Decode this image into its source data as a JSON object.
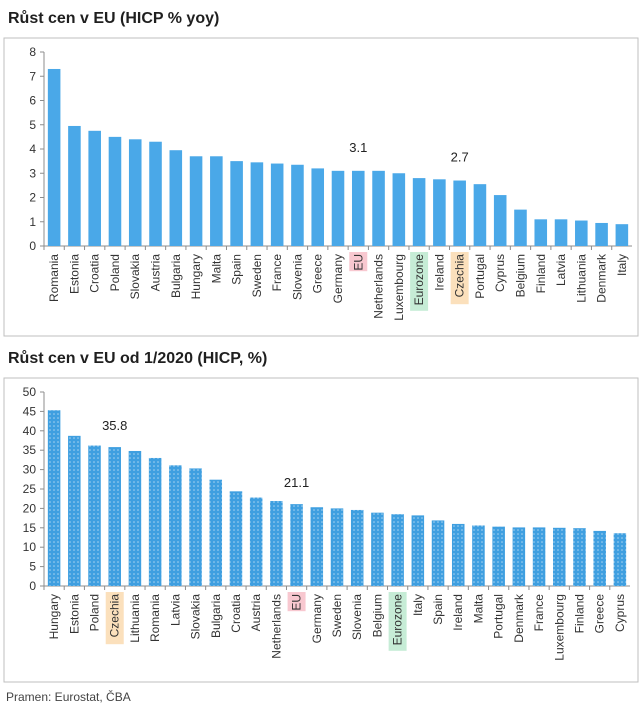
{
  "chart_data": [
    {
      "type": "bar",
      "title": "Růst cen v EU (HICP % yoy)",
      "ylim": [
        0,
        8
      ],
      "yticks": [
        0,
        1,
        2,
        3,
        4,
        5,
        6,
        7,
        8
      ],
      "grid": false,
      "bar_color": "#4aa8e8",
      "categories": [
        "Romania",
        "Estonia",
        "Croatia",
        "Poland",
        "Slovakia",
        "Austria",
        "Bulgaria",
        "Hungary",
        "Malta",
        "Spain",
        "Sweden",
        "France",
        "Slovenia",
        "Greece",
        "Germany",
        "EU",
        "Netherlands",
        "Luxembourg",
        "Eurozone",
        "Ireland",
        "Czechia",
        "Portugal",
        "Cyprus",
        "Belgium",
        "Finland",
        "Latvia",
        "Lithuania",
        "Denmark",
        "Italy"
      ],
      "values": [
        7.3,
        4.95,
        4.75,
        4.5,
        4.4,
        4.3,
        3.95,
        3.7,
        3.7,
        3.5,
        3.45,
        3.4,
        3.35,
        3.2,
        3.1,
        3.1,
        3.1,
        3.0,
        2.8,
        2.75,
        2.7,
        2.55,
        2.1,
        1.5,
        1.1,
        1.1,
        1.05,
        0.95,
        0.9
      ],
      "data_labels": [
        {
          "category": "EU",
          "text": "3.1"
        },
        {
          "category": "Czechia",
          "text": "2.7"
        }
      ],
      "highlights": [
        {
          "category": "EU",
          "color": "#f8c8d0"
        },
        {
          "category": "Eurozone",
          "color": "#c6ecd6"
        },
        {
          "category": "Czechia",
          "color": "#fbe0bc"
        }
      ]
    },
    {
      "type": "bar",
      "title": "Růst cen v EU od 1/2020 (HICP, %)",
      "ylim": [
        0,
        50
      ],
      "yticks": [
        0,
        5,
        10,
        15,
        20,
        25,
        30,
        35,
        40,
        45,
        50
      ],
      "grid": false,
      "bar_color": "#3f9fe0",
      "bar_pattern": "dotted",
      "categories": [
        "Hungary",
        "Estonia",
        "Poland",
        "Czechia",
        "Lithuania",
        "Romania",
        "Latvia",
        "Slovakia",
        "Bulgaria",
        "Croatia",
        "Austria",
        "Netherlands",
        "EU",
        "Germany",
        "Sweden",
        "Slovenia",
        "Belgium",
        "Eurozone",
        "Italy",
        "Spain",
        "Ireland",
        "Malta",
        "Portugal",
        "Denmark",
        "France",
        "Luxembourg",
        "Finland",
        "Greece",
        "Cyprus"
      ],
      "values": [
        45.3,
        38.7,
        36.2,
        35.8,
        34.8,
        33.0,
        31.1,
        30.3,
        27.4,
        24.4,
        22.8,
        21.9,
        21.1,
        20.3,
        20.0,
        19.6,
        18.9,
        18.5,
        18.2,
        16.9,
        16.0,
        15.6,
        15.3,
        15.1,
        15.1,
        15.0,
        14.9,
        14.2,
        13.6
      ],
      "data_labels": [
        {
          "category": "Czechia",
          "text": "35.8"
        },
        {
          "category": "EU",
          "text": "21.1"
        }
      ],
      "highlights": [
        {
          "category": "Czechia",
          "color": "#fbe0bc"
        },
        {
          "category": "EU",
          "color": "#f8c8d0"
        },
        {
          "category": "Eurozone",
          "color": "#c6ecd6"
        }
      ]
    }
  ],
  "footer": {
    "source": "Pramen: Eurostat, ČBA"
  }
}
